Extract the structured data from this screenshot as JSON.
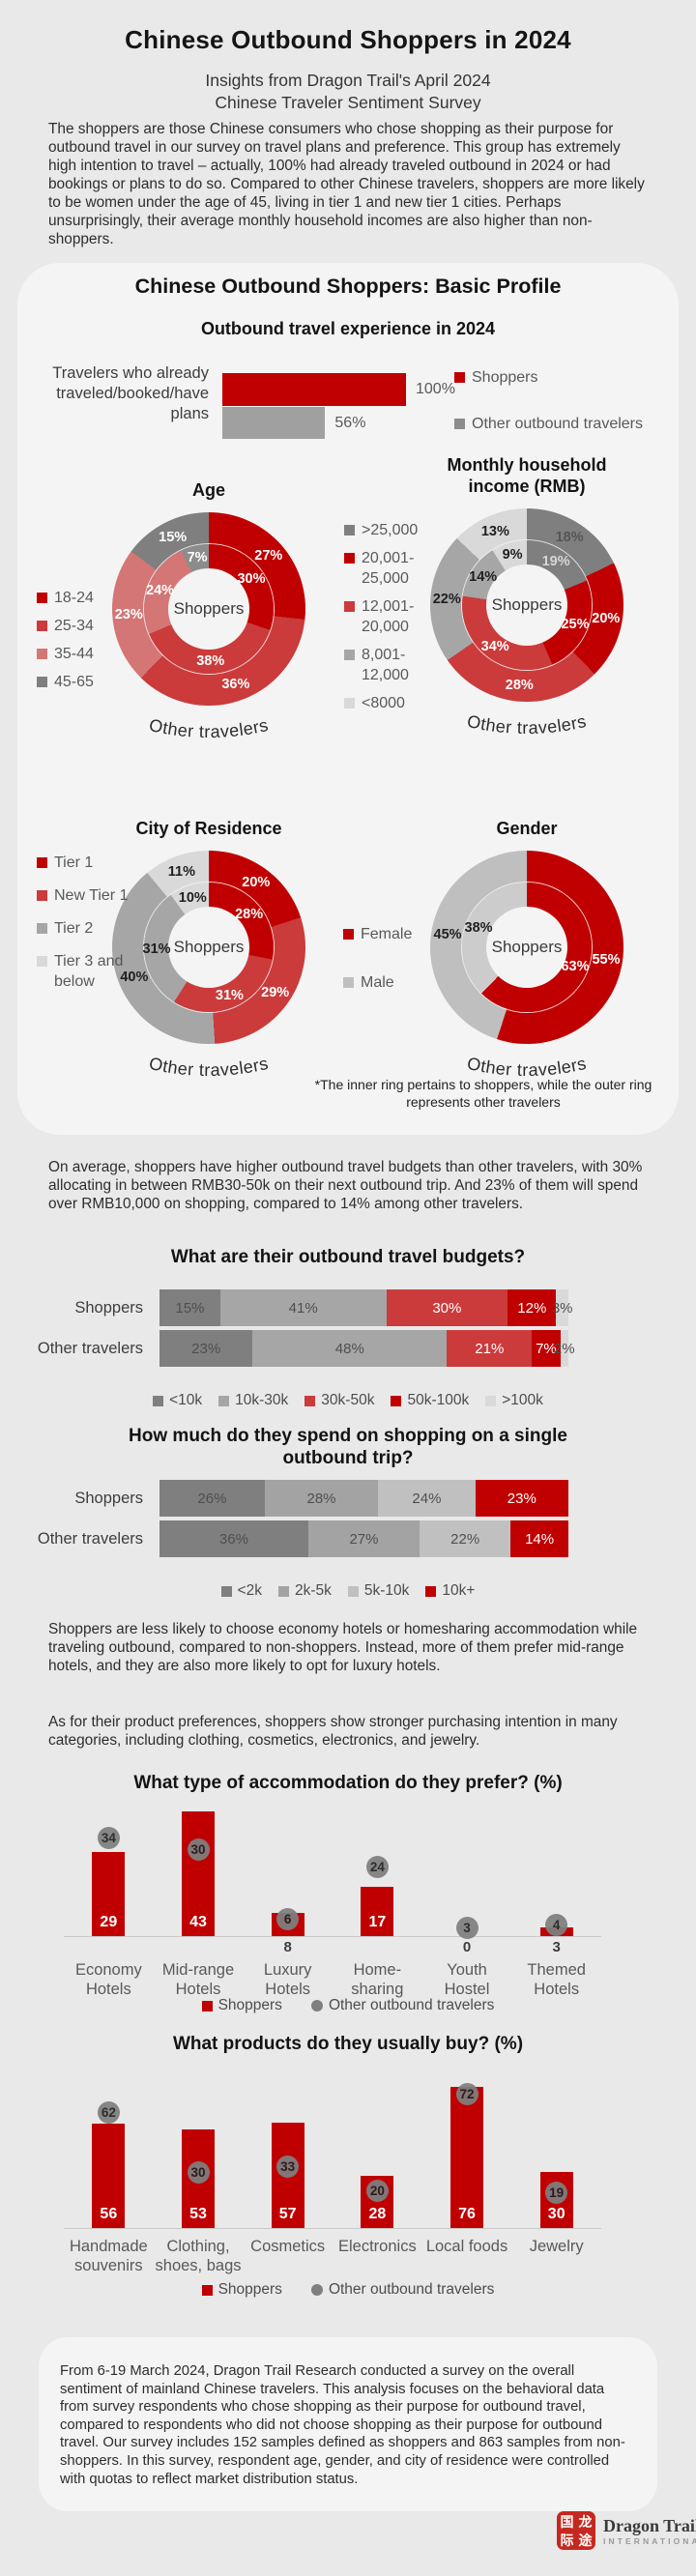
{
  "page": {
    "title": "Chinese Outbound Shoppers in 2024",
    "subtitle": "Insights from Dragon Trail's April 2024 Chinese Traveler Sentiment Survey",
    "intro": "The shoppers are those Chinese consumers who chose shopping as their purpose for outbound travel in our survey on travel plans and preference. This group has extremely high intention to travel – actually, 100% had already traveled outbound in 2024 or had bookings or plans to do so. Compared to other Chinese travelers, shoppers are more likely to be women under the age of 45, living in tier 1 and new tier 1 cities. Perhaps unsurprisingly, their average monthly household incomes are also higher than non-shoppers."
  },
  "profile_card": {
    "heading": "Chinese Outbound Shoppers: Basic Profile",
    "footnote": "*The inner ring pertains to shoppers, while the outer ring represents other travelers"
  },
  "sections": {
    "budgets_para": "On average, shoppers have higher outbound travel budgets than other travelers, with 30% allocating in between RMB30-50k on their next outbound trip. And 23% of them will spend over RMB10,000 on shopping, compared to 14% among other travelers.",
    "hotels_para": "Shoppers are less likely to choose economy hotels or homesharing accommodation while traveling outbound, compared to non-shoppers. Instead, more of them prefer mid-range hotels, and they are also more likely to opt for luxury hotels.",
    "products_para": "As for their product preferences, shoppers show stronger purchasing intention in many categories, including clothing, cosmetics, electronics, and jewelry."
  },
  "footer": {
    "methodology": "From 6-19 March 2024, Dragon Trail Research conducted a survey on the overall sentiment of mainland Chinese travelers. This analysis focuses on the behavioral data from survey respondents who chose shopping as their purpose for outbound travel, compared to respondents who did not choose shopping as their purpose for outbound travel. Our survey includes 152 samples defined as shoppers and 863 samples from non-shoppers. In this survey, respondent age, gender, and city of residence were controlled with quotas to reflect market distribution status."
  },
  "logo": {
    "seal_chars": [
      "国",
      "龙",
      "际",
      "途"
    ],
    "name": "Dragon Trail",
    "subtitle": "INTERNATIONAL"
  },
  "colors": {
    "dark_red": "#c00000",
    "mid_red": "#cb3b3b",
    "salmon": "#d47676",
    "dark_gray": "#7f7f7f",
    "mid_gray": "#a6a6a6",
    "light_gray": "#bfbfbf",
    "lighter_gray": "#d9d9d9",
    "background": "#e9e9e9",
    "card": "#f4f4f4"
  },
  "chart_data": [
    {
      "id": "experience",
      "type": "bar",
      "title": "Outbound travel experience in 2024",
      "category": "Travelers who already traveled/booked/have plans",
      "xmax": 100,
      "series": [
        {
          "name": "Shoppers",
          "value": 100,
          "label": "100%",
          "color": "#c00000"
        },
        {
          "name": "Other outbound travelers",
          "value": 56,
          "label": "56%",
          "color": "#a0a0a0"
        }
      ],
      "legend": [
        {
          "label": "Shoppers",
          "color": "#c00000",
          "shape": "square"
        },
        {
          "label": "Other outbound travelers",
          "color": "#8c8c8c",
          "shape": "square"
        }
      ]
    },
    {
      "id": "age",
      "type": "donut",
      "title": "Age",
      "center": "Shoppers",
      "ring_label": "Other travelers",
      "categories": [
        "18-24",
        "25-34",
        "35-44",
        "45-65"
      ],
      "inner": {
        "name": "Shoppers",
        "values": [
          30,
          38,
          24,
          7
        ],
        "labels": [
          "30%",
          "38%",
          "24%",
          "7%"
        ],
        "colors": [
          "#c00000",
          "#cb3b3b",
          "#d47676",
          "#8c8c8c"
        ],
        "label_colors": [
          "#ffffff",
          "#ffffff",
          "#ffffff",
          "#ffffff"
        ]
      },
      "outer": {
        "name": "Other travelers",
        "values": [
          27,
          36,
          23,
          15
        ],
        "labels": [
          "27%",
          "36%",
          "23%",
          "15%"
        ],
        "colors": [
          "#c00000",
          "#cb3b3b",
          "#d47676",
          "#7f7f7f"
        ],
        "label_colors": [
          "#ffffff",
          "#ffffff",
          "#ffffff",
          "#ffffff"
        ]
      },
      "legend": [
        {
          "label": "18-24",
          "color": "#c00000",
          "shape": "square"
        },
        {
          "label": "25-34",
          "color": "#cb3b3b",
          "shape": "square"
        },
        {
          "label": "35-44",
          "color": "#d47676",
          "shape": "square"
        },
        {
          "label": "45-65",
          "color": "#7f7f7f",
          "shape": "square"
        }
      ]
    },
    {
      "id": "income",
      "type": "donut",
      "title": "Monthly household income (RMB)",
      "center": "Shoppers",
      "ring_label": "Other travelers",
      "categories": [
        ">25,000",
        "20,001-25,000",
        "12,001-20,000",
        "8,001-12,000",
        "<8000"
      ],
      "inner": {
        "name": "Shoppers",
        "values": [
          19,
          25,
          34,
          14,
          9
        ],
        "labels": [
          "19%",
          "25%",
          "34%",
          "14%",
          "9%"
        ],
        "colors": [
          "#7f7f7f",
          "#c00000",
          "#cb3b3b",
          "#a6a6a6",
          "#d9d9d9"
        ],
        "label_colors": [
          "#d6d6d6",
          "#ffffff",
          "#ffffff",
          "#1f1f1f",
          "#1f1f1f"
        ]
      },
      "outer": {
        "name": "Other travelers",
        "values": [
          18,
          20,
          28,
          22,
          13
        ],
        "labels": [
          "18%",
          "20%",
          "28%",
          "22%",
          "13%"
        ],
        "colors": [
          "#7f7f7f",
          "#c00000",
          "#cb3b3b",
          "#a6a6a6",
          "#d9d9d9"
        ],
        "label_colors": [
          "#555555",
          "#ffffff",
          "#ffffff",
          "#1f1f1f",
          "#1f1f1f"
        ]
      },
      "legend": [
        {
          "label": ">25,000",
          "color": "#7f7f7f",
          "shape": "square"
        },
        {
          "label": "20,001-25,000",
          "color": "#c00000",
          "shape": "square"
        },
        {
          "label": "12,001-20,000",
          "color": "#cb3b3b",
          "shape": "square"
        },
        {
          "label": "8,001-12,000",
          "color": "#a6a6a6",
          "shape": "square"
        },
        {
          "label": "<8000",
          "color": "#d9d9d9",
          "shape": "square"
        }
      ]
    },
    {
      "id": "city",
      "type": "donut",
      "title": "City of Residence",
      "center": "Shoppers",
      "ring_label": "Other travelers",
      "categories": [
        "Tier 1",
        "New Tier 1",
        "Tier 2",
        "Tier 3 and below"
      ],
      "inner": {
        "name": "Shoppers",
        "values": [
          28,
          31,
          31,
          10
        ],
        "labels": [
          "28%",
          "31%",
          "31%",
          "10%"
        ],
        "colors": [
          "#c00000",
          "#cb3b3b",
          "#a6a6a6",
          "#d9d9d9"
        ],
        "label_colors": [
          "#ffffff",
          "#ffffff",
          "#1f1f1f",
          "#1f1f1f"
        ]
      },
      "outer": {
        "name": "Other travelers",
        "values": [
          20,
          29,
          40,
          11
        ],
        "labels": [
          "20%",
          "29%",
          "40%",
          "11%"
        ],
        "colors": [
          "#c00000",
          "#cb3b3b",
          "#a6a6a6",
          "#d9d9d9"
        ],
        "label_colors": [
          "#ffffff",
          "#ffffff",
          "#1f1f1f",
          "#1f1f1f"
        ]
      },
      "legend": [
        {
          "label": "Tier 1",
          "color": "#c00000",
          "shape": "square"
        },
        {
          "label": "New Tier 1",
          "color": "#cb3b3b",
          "shape": "square"
        },
        {
          "label": "Tier 2",
          "color": "#a6a6a6",
          "shape": "square"
        },
        {
          "label": "Tier 3 and below",
          "color": "#d9d9d9",
          "shape": "square"
        }
      ]
    },
    {
      "id": "gender",
      "type": "donut",
      "title": "Gender",
      "center": "Shoppers",
      "ring_label": "Other travelers",
      "categories": [
        "Female",
        "Male"
      ],
      "inner": {
        "name": "Shoppers",
        "values": [
          63,
          38
        ],
        "labels": [
          "63%",
          "38%"
        ],
        "colors": [
          "#c00000",
          "#cccccc"
        ],
        "label_colors": [
          "#ffffff",
          "#1f1f1f"
        ]
      },
      "outer": {
        "name": "Other travelers",
        "values": [
          55,
          45
        ],
        "labels": [
          "55%",
          "45%"
        ],
        "colors": [
          "#c00000",
          "#bfbfbf"
        ],
        "label_colors": [
          "#ffffff",
          "#1f1f1f"
        ]
      },
      "legend": [
        {
          "label": "Female",
          "color": "#c00000",
          "shape": "square"
        },
        {
          "label": "Male",
          "color": "#bfbfbf",
          "shape": "square"
        }
      ]
    },
    {
      "id": "budgets",
      "type": "stacked",
      "title": "What are their outbound travel budgets?",
      "rows": [
        {
          "name": "Shoppers",
          "values": [
            15,
            41,
            30,
            12,
            3
          ]
        },
        {
          "name": "Other travelers",
          "values": [
            23,
            48,
            21,
            7,
            2
          ]
        }
      ],
      "segments": [
        {
          "label": "<10k",
          "color": "#7f7f7f",
          "text": "#4f4f4f"
        },
        {
          "label": "10k-30k",
          "color": "#a6a6a6",
          "text": "#4f4f4f"
        },
        {
          "label": "30k-50k",
          "color": "#cc3b3b",
          "text": "#ffffff"
        },
        {
          "label": "50k-100k",
          "color": "#c00000",
          "text": "#ffffff"
        },
        {
          "label": ">100k",
          "color": "#d9d9d9",
          "text": "#4f4f4f"
        }
      ],
      "legend": [
        {
          "label": "<10k",
          "color": "#7f7f7f",
          "shape": "square"
        },
        {
          "label": "10k-30k",
          "color": "#a6a6a6",
          "shape": "square"
        },
        {
          "label": "30k-50k",
          "color": "#cc3b3b",
          "shape": "square"
        },
        {
          "label": "50k-100k",
          "color": "#c00000",
          "shape": "square"
        },
        {
          "label": ">100k",
          "color": "#d9d9d9",
          "shape": "square"
        }
      ]
    },
    {
      "id": "spend",
      "type": "stacked",
      "title": "How much do they spend on shopping on a single outbound trip?",
      "rows": [
        {
          "name": "Shoppers",
          "values": [
            26,
            28,
            24,
            23
          ]
        },
        {
          "name": "Other travelers",
          "values": [
            36,
            27,
            22,
            14
          ]
        }
      ],
      "segments": [
        {
          "label": "<2k",
          "color": "#7f7f7f",
          "text": "#4f4f4f"
        },
        {
          "label": "2k-5k",
          "color": "#a3a3a3",
          "text": "#4f4f4f"
        },
        {
          "label": "5k-10k",
          "color": "#c0c0c0",
          "text": "#4f4f4f"
        },
        {
          "label": "10k+",
          "color": "#c00000",
          "text": "#ffffff"
        }
      ],
      "legend": [
        {
          "label": "<2k",
          "color": "#7f7f7f",
          "shape": "square"
        },
        {
          "label": "2k-5k",
          "color": "#a3a3a3",
          "shape": "square"
        },
        {
          "label": "5k-10k",
          "color": "#c0c0c0",
          "shape": "square"
        },
        {
          "label": "10k+",
          "color": "#c00000",
          "shape": "square"
        }
      ]
    },
    {
      "id": "accommodation",
      "type": "column",
      "title": "What type of accommodation do they prefer? (%)",
      "unit": 3.0,
      "tall": false,
      "cat_margin": 24,
      "categories": [
        "Economy Hotels",
        "Mid-range Hotels",
        "Luxury Hotels",
        "Home- sharing",
        "Youth Hostel",
        "Themed Hotels"
      ],
      "bars": [
        29,
        43,
        8,
        17,
        0,
        3
      ],
      "dots": [
        34,
        30,
        6,
        24,
        3,
        4
      ],
      "inside": [
        true,
        true,
        false,
        true,
        false,
        false
      ],
      "series_names": [
        "Shoppers",
        "Other outbound travelers"
      ],
      "legend": [
        {
          "label": "Shoppers",
          "color": "#c00000",
          "shape": "square"
        },
        {
          "label": "Other outbound travelers",
          "color": "#7f7f7f",
          "shape": "circle"
        }
      ]
    },
    {
      "id": "products",
      "type": "column",
      "title": "What products do they usually buy? (%)",
      "unit": 1.92,
      "tall": true,
      "cat_margin": 8,
      "categories": [
        "Handmade souvenirs",
        "Clothing, shoes, bags",
        "Cosmetics",
        "Electronics",
        "Local foods",
        "Jewelry"
      ],
      "bars": [
        56,
        53,
        57,
        28,
        76,
        30
      ],
      "dots": [
        62,
        30,
        33,
        20,
        72,
        19
      ],
      "inside": [
        true,
        true,
        true,
        true,
        true,
        true
      ],
      "series_names": [
        "Shoppers",
        "Other outbound travelers"
      ],
      "legend": [
        {
          "label": "Shoppers",
          "color": "#c00000",
          "shape": "square"
        },
        {
          "label": "Other outbound travelers",
          "color": "#7f7f7f",
          "shape": "circle"
        }
      ]
    }
  ]
}
